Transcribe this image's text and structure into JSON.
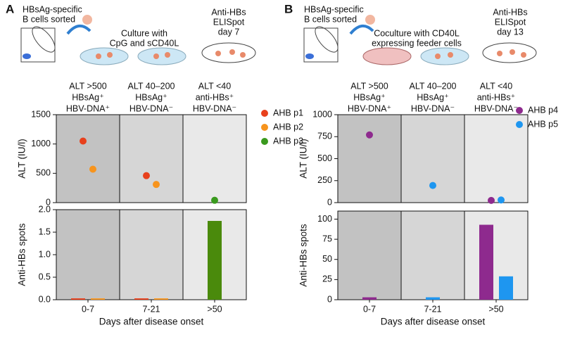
{
  "panels": [
    {
      "label": "A",
      "schematic": [
        [
          "HBsAg-specific",
          "B cells sorted"
        ],
        [
          "Culture with",
          "CpG and sCD40L"
        ],
        [
          "Anti-HBs",
          "ELISpot",
          "day 7"
        ]
      ]
    },
    {
      "label": "B",
      "schematic": [
        [
          "HBsAg-specific",
          "B cells sorted"
        ],
        [
          "Coculture with CD40L",
          "expressing feeder cells"
        ],
        [
          "Anti-HBs",
          "ELISpot",
          "day 13"
        ]
      ]
    }
  ],
  "chart_data": [
    {
      "type": "scatter",
      "y_label": "ALT (IU/l)",
      "categories": [
        [
          "ALT >500",
          "HBsAg⁺",
          "HBV-DNA⁺"
        ],
        [
          "ALT 40–200",
          "HBsAg⁺",
          "HBV-DNA⁻"
        ],
        [
          "ALT <40",
          "anti-HBs⁺",
          "HBV-DNA⁻"
        ]
      ],
      "background": [
        "#c2c2c2",
        "#d6d6d6",
        "#e9e9e9"
      ],
      "ylim": [
        0,
        1500
      ],
      "yticks": [
        0,
        500,
        1000,
        1500
      ],
      "series": [
        {
          "name": "AHB p1",
          "color": "#e8401c",
          "values": [
            1050,
            460,
            null
          ]
        },
        {
          "name": "AHB p2",
          "color": "#f7941d",
          "values": [
            570,
            310,
            null
          ]
        },
        {
          "name": "AHB p3",
          "color": "#3a9a1e",
          "values": [
            null,
            null,
            40
          ]
        }
      ]
    },
    {
      "type": "bar",
      "y_label": "Anti-HBs spots",
      "x_label": "Days after disease onset",
      "categories": [
        "0-7",
        "7-21",
        ">50"
      ],
      "background": [
        "#c2c2c2",
        "#d6d6d6",
        "#e9e9e9"
      ],
      "ylim": [
        0,
        2
      ],
      "yticks": [
        {
          "value": 0,
          "label": "0.0"
        },
        0.5,
        {
          "value": 1,
          "label": "1.0"
        },
        1.5,
        {
          "value": 2,
          "label": "2.0"
        }
      ],
      "series": [
        {
          "color": "#e8401c",
          "values": [
            0.03,
            0.03,
            null
          ]
        },
        {
          "color": "#f7941d",
          "values": [
            0.03,
            0.03,
            null
          ]
        },
        {
          "color": "#4a8a0c",
          "values": [
            null,
            null,
            1.75
          ]
        }
      ]
    },
    {
      "type": "scatter",
      "y_label": "ALT (IU/l)",
      "categories": [
        [
          "ALT >500",
          "HBsAg⁺",
          "HBV-DNA⁺"
        ],
        [
          "ALT 40–200",
          "HBsAg⁺",
          "HBV-DNA⁻"
        ],
        [
          "ALT <40",
          "anti-HBs⁺",
          "HBV-DNA⁻"
        ]
      ],
      "background": [
        "#c2c2c2",
        "#d6d6d6",
        "#e9e9e9"
      ],
      "ylim": [
        0,
        1000
      ],
      "yticks": [
        0,
        250,
        500,
        750,
        1000
      ],
      "series": [
        {
          "name": "AHB p4",
          "color": "#8e2a8e",
          "values": [
            770,
            null,
            25
          ]
        },
        {
          "name": "AHB p5",
          "color": "#1e96f0",
          "values": [
            null,
            195,
            30
          ]
        }
      ]
    },
    {
      "type": "bar",
      "y_label": "Anti-HBs spots",
      "x_label": "Days after disease onset",
      "categories": [
        "0-7",
        "7-21",
        ">50"
      ],
      "background": [
        "#c2c2c2",
        "#d6d6d6",
        "#e9e9e9"
      ],
      "ylim": [
        0,
        110
      ],
      "yticks": [
        0,
        25,
        50,
        75,
        100
      ],
      "series": [
        {
          "color": "#8e2a8e",
          "values": [
            3,
            null,
            93
          ]
        },
        {
          "color": "#1e96f0",
          "values": [
            null,
            3,
            29
          ]
        }
      ]
    }
  ]
}
